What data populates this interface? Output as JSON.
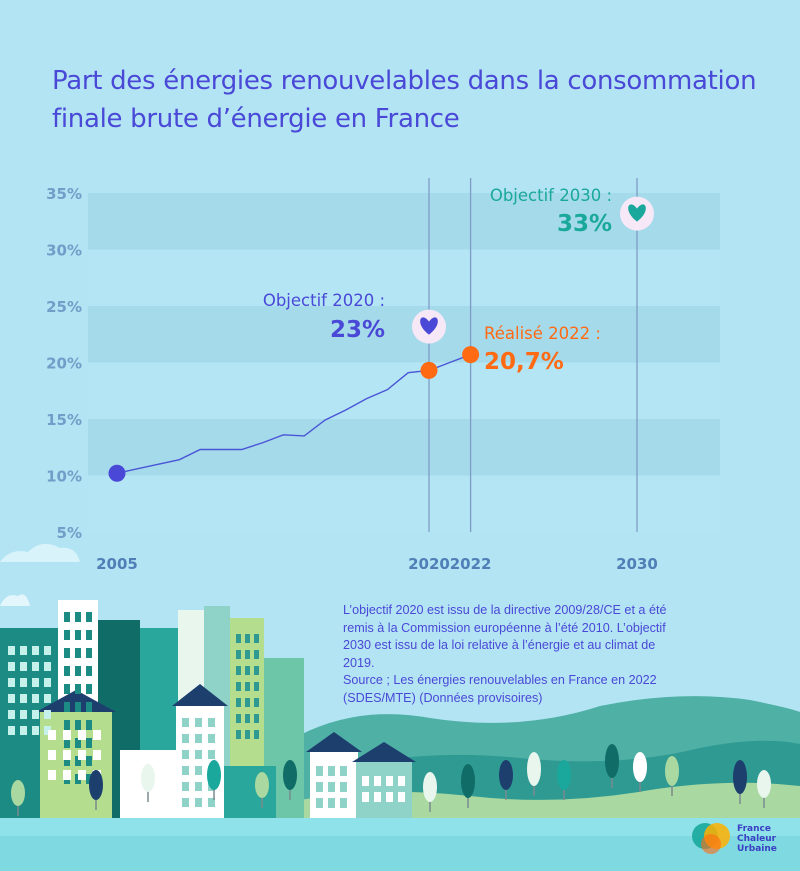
{
  "title": "Part des énergies renouvelables dans la consommation finale brute d’énergie en France",
  "note": {
    "lines": [
      "L’objectif 2020 est issu de la directive 2009/28/CE et a été",
      "remis à la Commission européenne à l’été 2010. L’objectif",
      "2030 est issu de la loi relative à l’énergie et au climat de",
      "2019.",
      "Source ; Les énergies renouvelables en France en 2022",
      "(SDES/MTE)  (Données provisoires)"
    ]
  },
  "logo": {
    "lines": [
      "France",
      "Chaleur",
      "Urbaine"
    ],
    "icon": "overlapping-circles-logo"
  },
  "colors": {
    "background": "#b3e4f4",
    "primary": "#4a48d6",
    "accent": "#1aa89c",
    "highlight": "#ff6a13",
    "line": "#4a55d6"
  },
  "chart_data": {
    "type": "line",
    "title": "Part des énergies renouvelables dans la consommation finale brute d’énergie en France",
    "xlim": [
      2005,
      2030
    ],
    "ylim": [
      5,
      35
    ],
    "y_ticks": [
      35,
      30,
      25,
      20,
      15,
      10,
      5
    ],
    "y_tick_labels": [
      "35%",
      "30%",
      "25%",
      "20%",
      "15%",
      "10%",
      "5%"
    ],
    "x_ticks": [
      2005,
      2020,
      2022,
      2030
    ],
    "x_tick_labels": [
      "2005",
      "2020",
      "2022",
      "2030"
    ],
    "grid": "horizontal bands",
    "series": [
      {
        "x": [
          2005,
          2006,
          2007,
          2008,
          2009,
          2010,
          2011,
          2012,
          2013,
          2014,
          2015,
          2016,
          2017,
          2018,
          2019,
          2020,
          2021,
          2022
        ],
        "y": [
          10.2,
          10.6,
          11.0,
          11.4,
          12.3,
          12.3,
          12.3,
          12.9,
          13.6,
          13.5,
          14.9,
          15.8,
          16.8,
          17.6,
          19.1,
          19.3,
          20.0,
          20.7
        ]
      }
    ],
    "markers": [
      {
        "x": 2005,
        "y": 10.2,
        "color": "#4a48d6"
      },
      {
        "x": 2020,
        "y": 19.3,
        "color": "#ff6a13"
      },
      {
        "x": 2022,
        "y": 20.7,
        "color": "#ff6a13"
      }
    ],
    "annotations": [
      {
        "id": "obj2020",
        "label": "Objectif 2020 :",
        "value": "23%",
        "x": 2020,
        "y": 23,
        "color": "#4a48d6",
        "icon": "heart-icon"
      },
      {
        "id": "real2022",
        "label": "Réalisé 2022 :",
        "value": "20,7%",
        "x": 2022,
        "y": 20.7,
        "color": "#ff6a13"
      },
      {
        "id": "obj2030",
        "label": "Objectif 2030 :",
        "value": "33%",
        "x": 2030,
        "y": 33,
        "color": "#1aa89c",
        "icon": "heart-icon"
      }
    ],
    "vlines": [
      2020,
      2022,
      2030
    ]
  }
}
